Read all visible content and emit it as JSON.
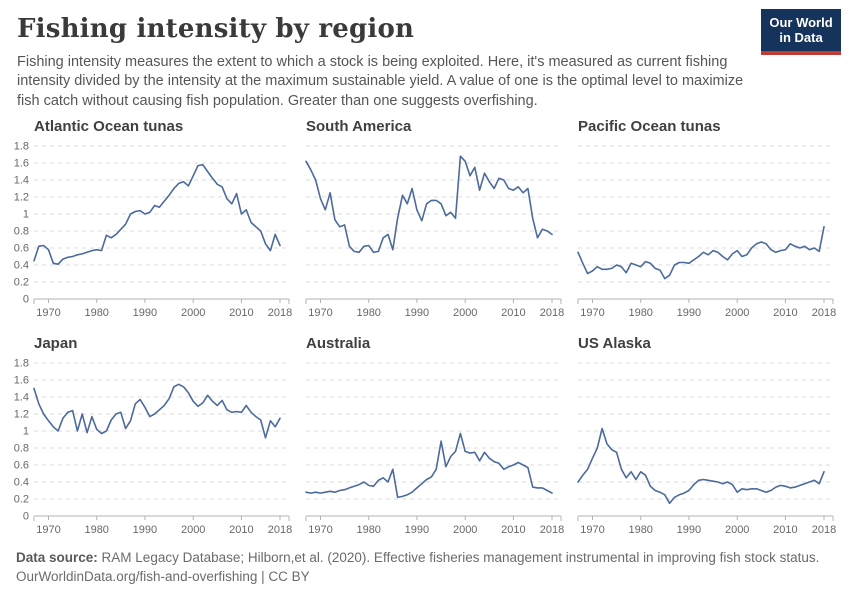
{
  "header": {
    "title": "Fishing intensity by region",
    "subtitle": "Fishing intensity measures the extent to which a stock is being exploited. Here, it's measured as current fishing intensity divided by the intensity at the maximum sustainable yield. A value of one is the optimal level to maximize fish catch without causing fish population. Greater than one suggests overfishing.",
    "logo": {
      "line1": "Our World",
      "line2": "in Data",
      "bg_color": "#16335B",
      "accent_color": "#C23A34"
    }
  },
  "chart_config": {
    "x_range": [
      1967,
      2018
    ],
    "y_range": [
      0,
      1.8
    ],
    "y_ticks": [
      0,
      0.2,
      0.4,
      0.6,
      0.8,
      1,
      1.2,
      1.4,
      1.6,
      1.8
    ],
    "x_ticks": [
      1970,
      1980,
      1990,
      2000,
      2010,
      2018
    ],
    "grid": "dashed",
    "legend": "none",
    "line_color": "#4C6A9C",
    "grid_color": "#DBDBDB",
    "axis_color": "#B3B3B3",
    "tick_label_color": "#686868"
  },
  "chart_data": [
    {
      "type": "line",
      "title": "Atlantic Ocean tunas",
      "start_year": 1967,
      "show_y_labels": true,
      "xlabel": "",
      "ylabel": "",
      "ylim": [
        0,
        1.8
      ],
      "values": [
        0.45,
        0.62,
        0.63,
        0.58,
        0.42,
        0.41,
        0.47,
        0.49,
        0.5,
        0.52,
        0.53,
        0.55,
        0.57,
        0.58,
        0.57,
        0.75,
        0.72,
        0.76,
        0.82,
        0.88,
        1.0,
        1.03,
        1.04,
        1.0,
        1.02,
        1.1,
        1.08,
        1.15,
        1.22,
        1.3,
        1.36,
        1.38,
        1.33,
        1.45,
        1.57,
        1.58,
        1.5,
        1.42,
        1.35,
        1.32,
        1.18,
        1.12,
        1.24,
        1.0,
        1.05,
        0.9,
        0.85,
        0.8,
        0.65,
        0.57,
        0.76,
        0.63
      ]
    },
    {
      "type": "line",
      "title": "South America",
      "start_year": 1967,
      "show_y_labels": false,
      "xlabel": "",
      "ylabel": "",
      "ylim": [
        0,
        1.8
      ],
      "values": [
        1.62,
        1.52,
        1.4,
        1.18,
        1.05,
        1.25,
        0.93,
        0.85,
        0.87,
        0.62,
        0.56,
        0.55,
        0.62,
        0.63,
        0.55,
        0.56,
        0.72,
        0.76,
        0.58,
        0.95,
        1.22,
        1.12,
        1.3,
        1.05,
        0.92,
        1.12,
        1.16,
        1.16,
        1.12,
        0.98,
        1.02,
        0.95,
        1.68,
        1.62,
        1.45,
        1.55,
        1.28,
        1.48,
        1.38,
        1.3,
        1.42,
        1.4,
        1.3,
        1.28,
        1.32,
        1.25,
        1.3,
        0.95,
        0.72,
        0.82,
        0.8,
        0.76
      ]
    },
    {
      "type": "line",
      "title": "Pacific Ocean tunas",
      "start_year": 1967,
      "show_y_labels": false,
      "xlabel": "",
      "ylabel": "",
      "ylim": [
        0,
        1.8
      ],
      "values": [
        0.55,
        0.42,
        0.3,
        0.33,
        0.38,
        0.35,
        0.35,
        0.36,
        0.4,
        0.38,
        0.31,
        0.42,
        0.4,
        0.38,
        0.44,
        0.42,
        0.36,
        0.34,
        0.24,
        0.28,
        0.4,
        0.43,
        0.43,
        0.42,
        0.46,
        0.5,
        0.55,
        0.52,
        0.57,
        0.55,
        0.5,
        0.46,
        0.53,
        0.57,
        0.5,
        0.52,
        0.6,
        0.65,
        0.67,
        0.65,
        0.58,
        0.55,
        0.57,
        0.58,
        0.65,
        0.62,
        0.6,
        0.62,
        0.58,
        0.6,
        0.56,
        0.85
      ]
    },
    {
      "type": "line",
      "title": "Japan",
      "start_year": 1967,
      "show_y_labels": true,
      "xlabel": "",
      "ylabel": "",
      "ylim": [
        0,
        1.8
      ],
      "values": [
        1.5,
        1.32,
        1.2,
        1.12,
        1.05,
        1.0,
        1.15,
        1.22,
        1.24,
        1.0,
        1.2,
        0.98,
        1.17,
        1.02,
        0.97,
        1.0,
        1.13,
        1.2,
        1.22,
        1.03,
        1.12,
        1.32,
        1.37,
        1.28,
        1.17,
        1.2,
        1.25,
        1.3,
        1.38,
        1.52,
        1.55,
        1.52,
        1.45,
        1.35,
        1.29,
        1.33,
        1.42,
        1.35,
        1.3,
        1.36,
        1.25,
        1.22,
        1.23,
        1.22,
        1.3,
        1.22,
        1.17,
        1.13,
        0.92,
        1.12,
        1.05,
        1.15
      ]
    },
    {
      "type": "line",
      "title": "Australia",
      "start_year": 1967,
      "show_y_labels": false,
      "xlabel": "",
      "ylabel": "",
      "ylim": [
        0,
        1.8
      ],
      "values": [
        0.28,
        0.27,
        0.28,
        0.27,
        0.28,
        0.29,
        0.28,
        0.3,
        0.31,
        0.33,
        0.35,
        0.37,
        0.4,
        0.36,
        0.35,
        0.42,
        0.45,
        0.4,
        0.55,
        0.22,
        0.23,
        0.25,
        0.28,
        0.33,
        0.38,
        0.43,
        0.46,
        0.55,
        0.88,
        0.58,
        0.7,
        0.76,
        0.97,
        0.76,
        0.74,
        0.75,
        0.65,
        0.75,
        0.68,
        0.64,
        0.62,
        0.55,
        0.58,
        0.6,
        0.63,
        0.6,
        0.57,
        0.34,
        0.33,
        0.33,
        0.3,
        0.27
      ]
    },
    {
      "type": "line",
      "title": "US Alaska",
      "start_year": 1967,
      "show_y_labels": false,
      "xlabel": "",
      "ylabel": "",
      "ylim": [
        0,
        1.8
      ],
      "values": [
        0.4,
        0.48,
        0.55,
        0.68,
        0.8,
        1.03,
        0.85,
        0.78,
        0.75,
        0.55,
        0.45,
        0.52,
        0.43,
        0.52,
        0.48,
        0.35,
        0.3,
        0.28,
        0.25,
        0.15,
        0.22,
        0.25,
        0.27,
        0.3,
        0.37,
        0.42,
        0.43,
        0.42,
        0.41,
        0.4,
        0.38,
        0.4,
        0.37,
        0.28,
        0.32,
        0.31,
        0.32,
        0.32,
        0.3,
        0.28,
        0.3,
        0.34,
        0.36,
        0.35,
        0.33,
        0.34,
        0.36,
        0.38,
        0.4,
        0.42,
        0.38,
        0.52
      ]
    }
  ],
  "footer": {
    "source_label": "Data source:",
    "source_text": "RAM Legacy Database; Hilborn,et al. (2020). Effective fisheries management instrumental in improving fish stock status.",
    "url": "OurWorldinData.org/fish-and-overfishing",
    "separator": "|",
    "license": "CC BY"
  }
}
